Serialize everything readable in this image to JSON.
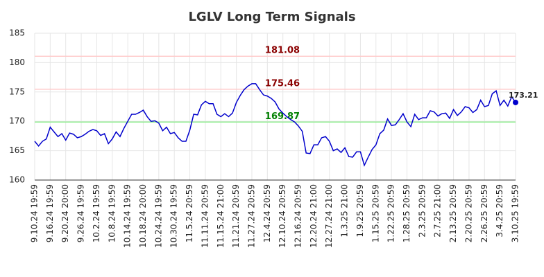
{
  "chart_data": {
    "type": "line",
    "title": "LGLV Long Term Signals",
    "categories": [
      "9.10.24 19:59",
      null,
      null,
      null,
      "9.16.24 19:59",
      null,
      null,
      null,
      "9.20.24 20:00",
      null,
      null,
      null,
      "9.26.24 19:59",
      null,
      null,
      null,
      "10.2.24 19:59",
      null,
      null,
      null,
      "10.8.24 19:59",
      null,
      null,
      null,
      "10.14.24 19:59",
      null,
      null,
      null,
      "10.18.24 20:00",
      null,
      null,
      null,
      "10.24.24 19:59",
      null,
      null,
      null,
      "10.30.24 19:59",
      null,
      null,
      null,
      "11.5.24 20:59",
      null,
      null,
      null,
      "11.11.24 20:59",
      null,
      null,
      null,
      "11.15.24 21:00",
      null,
      null,
      null,
      "11.21.24 20:59",
      null,
      null,
      null,
      "11.27.24 20:59",
      null,
      null,
      null,
      "12.4.24 20:59",
      null,
      null,
      null,
      "12.10.24 20:59",
      null,
      null,
      null,
      "12.16.24 20:59",
      null,
      null,
      null,
      "12.20.24 21:00",
      null,
      null,
      null,
      "12.27.24 21:00",
      null,
      null,
      null,
      "1.3.25 21:00",
      null,
      null,
      null,
      "1.9.25 20:59",
      null,
      null,
      null,
      "1.15.25 20:59",
      null,
      null,
      null,
      "1.22.25 20:59",
      null,
      null,
      null,
      "1.28.25 20:59",
      null,
      null,
      null,
      "2.3.25 20:59",
      null,
      null,
      null,
      "2.7.25 21:00",
      null,
      null,
      null,
      "2.13.25 20:59",
      null,
      null,
      null,
      "2.20.25 20:59",
      null,
      null,
      null,
      "2.26.25 20:59",
      null,
      null,
      null,
      "3.4.25 20:59",
      null,
      null,
      null,
      "3.10.25 19:59"
    ],
    "series": [
      {
        "name": "LGLV",
        "color": "#0000cc",
        "values": [
          166.6,
          165.8,
          166.6,
          167.0,
          169.0,
          168.2,
          167.4,
          167.9,
          166.8,
          168.0,
          167.8,
          167.2,
          167.4,
          167.8,
          168.3,
          168.6,
          168.4,
          167.6,
          167.9,
          166.2,
          167.0,
          168.2,
          167.4,
          168.8,
          170.0,
          171.2,
          171.2,
          171.5,
          171.9,
          170.8,
          170.0,
          170.1,
          169.7,
          168.4,
          169.0,
          167.9,
          168.1,
          167.2,
          166.6,
          166.6,
          168.5,
          171.2,
          171.1,
          172.8,
          173.4,
          173.0,
          173.0,
          171.2,
          170.8,
          171.3,
          170.8,
          171.4,
          173.2,
          174.4,
          175.4,
          176.0,
          176.4,
          176.4,
          175.4,
          174.5,
          174.3,
          173.9,
          173.3,
          172.1,
          171.4,
          170.8,
          170.3,
          169.9,
          169.2,
          168.3,
          164.6,
          164.5,
          166.0,
          166.0,
          167.2,
          167.4,
          166.6,
          165.0,
          165.3,
          164.7,
          165.5,
          164.0,
          163.9,
          164.8,
          164.8,
          162.5,
          163.9,
          165.2,
          166.0,
          167.9,
          168.5,
          170.4,
          169.3,
          169.4,
          170.3,
          171.3,
          169.9,
          169.1,
          171.2,
          170.3,
          170.6,
          170.6,
          171.8,
          171.6,
          170.9,
          171.3,
          171.4,
          170.5,
          172.0,
          171.0,
          171.6,
          172.5,
          172.3,
          171.5,
          172.0,
          173.6,
          172.5,
          172.7,
          174.7,
          175.2,
          172.7,
          173.6,
          172.6,
          174.2,
          173.21
        ]
      }
    ],
    "hlines": [
      {
        "value": 181.08,
        "color": "#ffcccc",
        "label_color": "#8b0000"
      },
      {
        "value": 175.46,
        "color": "#ffcccc",
        "label_color": "#8b0000"
      },
      {
        "value": 169.87,
        "color": "#90ee90",
        "label_color": "#008000"
      }
    ],
    "ylim": [
      160,
      185
    ],
    "yticks": [
      160,
      165,
      170,
      175,
      180,
      185
    ],
    "grid": true
  }
}
